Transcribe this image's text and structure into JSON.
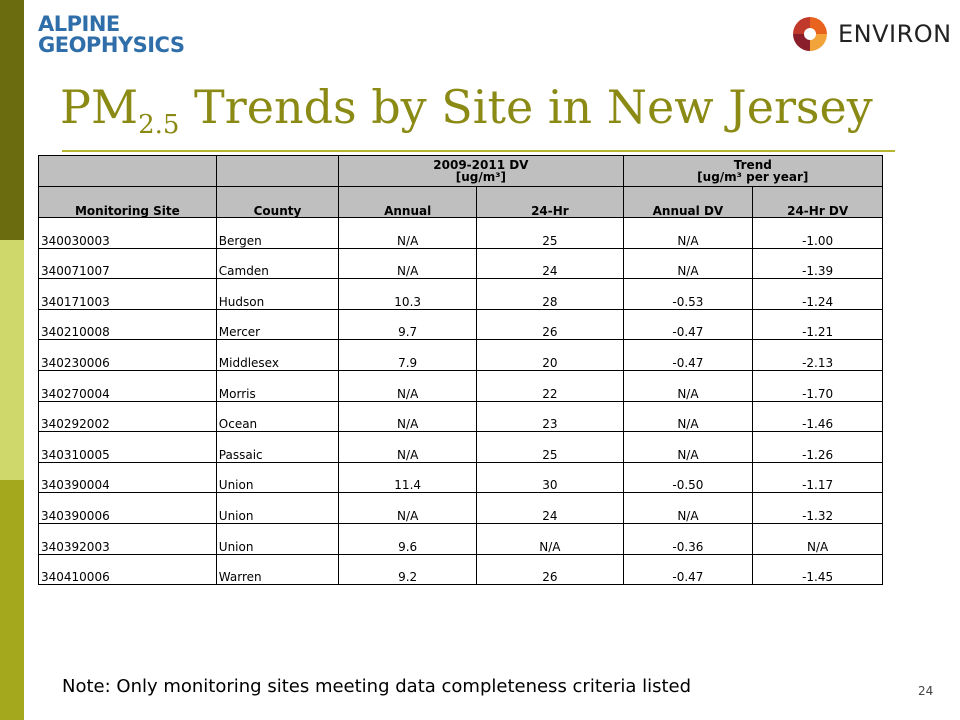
{
  "logos": {
    "alpine_line1": "ALPINE",
    "alpine_line2": "GEOPHYSICS",
    "environ": "ENVIRON"
  },
  "title": {
    "main": "PM",
    "subscript": "2.5",
    "rest": " Trends by Site in New Jersey"
  },
  "table": {
    "group_headers": {
      "dv": "2009-2011 DV",
      "dv_unit": "[ug/m³]",
      "trend": "Trend",
      "trend_unit": "[ug/m³ per year]"
    },
    "columns": [
      "Monitoring Site",
      "County",
      "Annual",
      "24-Hr",
      "Annual DV",
      "24-Hr DV"
    ],
    "rows": [
      [
        "340030003",
        "Bergen",
        "N/A",
        "25",
        "N/A",
        "-1.00"
      ],
      [
        "340071007",
        "Camden",
        "N/A",
        "24",
        "N/A",
        "-1.39"
      ],
      [
        "340171003",
        "Hudson",
        "10.3",
        "28",
        "-0.53",
        "-1.24"
      ],
      [
        "340210008",
        "Mercer",
        "9.7",
        "26",
        "-0.47",
        "-1.21"
      ],
      [
        "340230006",
        "Middlesex",
        "7.9",
        "20",
        "-0.47",
        "-2.13"
      ],
      [
        "340270004",
        "Morris",
        "N/A",
        "22",
        "N/A",
        "-1.70"
      ],
      [
        "340292002",
        "Ocean",
        "N/A",
        "23",
        "N/A",
        "-1.46"
      ],
      [
        "340310005",
        "Passaic",
        "N/A",
        "25",
        "N/A",
        "-1.26"
      ],
      [
        "340390004",
        "Union",
        "11.4",
        "30",
        "-0.50",
        "-1.17"
      ],
      [
        "340390006",
        "Union",
        "N/A",
        "24",
        "N/A",
        "-1.32"
      ],
      [
        "340392003",
        "Union",
        "9.6",
        "N/A",
        "-0.36",
        "N/A"
      ],
      [
        "340410006",
        "Warren",
        "9.2",
        "26",
        "-0.47",
        "-1.45"
      ]
    ]
  },
  "note": "Note: Only monitoring sites meeting data completeness criteria listed",
  "page_number": "24",
  "colors": {
    "title": "#8a8a14",
    "header_fill": "#bfbfbf",
    "bar_dark": "#6b6b0f",
    "bar_light": "#cfd86a",
    "bar_mid": "#a4a81c",
    "alpine_blue": "#2f6ea8",
    "environ_orange": "#e8641e"
  }
}
